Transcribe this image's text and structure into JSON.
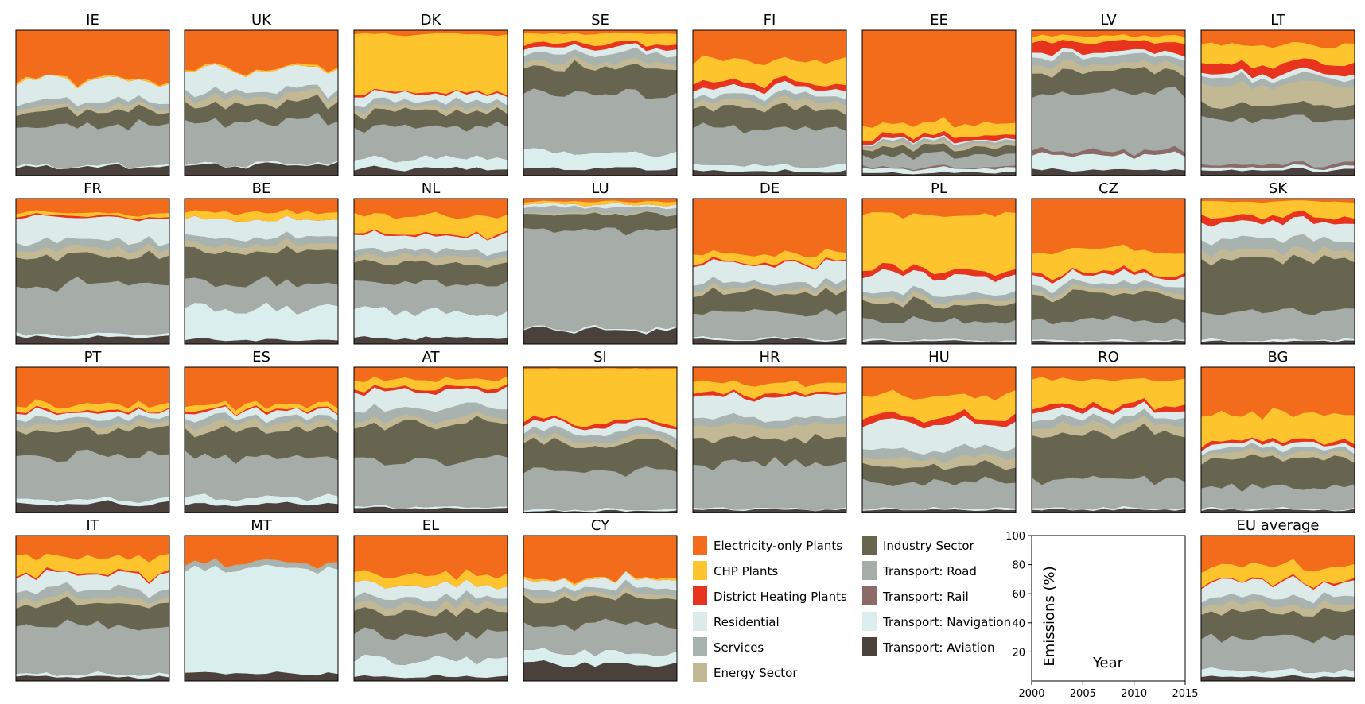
{
  "chart_data": {
    "type": "area",
    "stacked": "normalized",
    "x": [
      2000,
      2001,
      2002,
      2003,
      2004,
      2005,
      2006,
      2007,
      2008,
      2009,
      2010,
      2011,
      2012,
      2013,
      2014,
      2015
    ],
    "ylabel": "Emissions (%)",
    "xlabel": "Year",
    "xlim": [
      2000,
      2015
    ],
    "ylim": [
      0,
      100
    ],
    "xticks": [
      2000,
      2005,
      2010,
      2015
    ],
    "yticks": [
      20,
      40,
      60,
      80,
      100
    ],
    "legend": [
      {
        "name": "Electricity-only Plants",
        "color": "#f26c1b"
      },
      {
        "name": "CHP Plants",
        "color": "#fec42e"
      },
      {
        "name": "District Heating Plants",
        "color": "#e8341e"
      },
      {
        "name": "Residential",
        "color": "#ddeaea"
      },
      {
        "name": "Services",
        "color": "#a8b3b0"
      },
      {
        "name": "Energy Sector",
        "color": "#c3b894"
      },
      {
        "name": "Industry Sector",
        "color": "#676450"
      },
      {
        "name": "Transport: Road",
        "color": "#a6aca8"
      },
      {
        "name": "Transport: Rail",
        "color": "#8b6b68"
      },
      {
        "name": "Transport: Navigation",
        "color": "#daeeed"
      },
      {
        "name": "Transport: Aviation",
        "color": "#4a403c"
      }
    ],
    "stack_order": [
      "Transport: Aviation",
      "Transport: Navigation",
      "Transport: Rail",
      "Transport: Road",
      "Industry Sector",
      "Energy Sector",
      "Services",
      "Residential",
      "District Heating Plants",
      "CHP Plants",
      "Electricity-only Plants"
    ],
    "panels": [
      {
        "title": "IE",
        "shares": [
          6,
          1,
          0,
          28,
          10,
          3,
          4,
          14,
          0,
          1,
          33
        ]
      },
      {
        "title": "UK",
        "shares": [
          7,
          1,
          0,
          29,
          12,
          5,
          4,
          15,
          0,
          1,
          26
        ]
      },
      {
        "title": "DK",
        "shares": [
          5,
          7,
          0,
          22,
          10,
          3,
          4,
          5,
          1,
          40,
          3
        ]
      },
      {
        "title": "SE",
        "shares": [
          5,
          11,
          0,
          40,
          18,
          4,
          6,
          4,
          3,
          7,
          2
        ]
      },
      {
        "title": "FI",
        "shares": [
          3,
          4,
          0,
          26,
          14,
          5,
          4,
          5,
          4,
          15,
          20
        ]
      },
      {
        "title": "EE",
        "shares": [
          2,
          3,
          1,
          8,
          5,
          2,
          2,
          1,
          3,
          8,
          65
        ]
      },
      {
        "title": "LV",
        "shares": [
          4,
          10,
          3,
          40,
          15,
          5,
          5,
          3,
          7,
          4,
          4
        ]
      },
      {
        "title": "LT",
        "shares": [
          4,
          2,
          2,
          30,
          10,
          14,
          5,
          3,
          7,
          13,
          10
        ]
      },
      {
        "title": "FR",
        "shares": [
          5,
          2,
          0,
          34,
          19,
          5,
          5,
          17,
          1,
          2,
          10
        ]
      },
      {
        "title": "BE",
        "shares": [
          3,
          22,
          0,
          17,
          22,
          5,
          5,
          12,
          0,
          5,
          9
        ]
      },
      {
        "title": "NL",
        "shares": [
          4,
          18,
          0,
          19,
          14,
          5,
          4,
          10,
          1,
          13,
          12
        ]
      },
      {
        "title": "LU",
        "shares": [
          10,
          1,
          0,
          67,
          11,
          1,
          4,
          2,
          0,
          2,
          2
        ]
      },
      {
        "title": "DE",
        "shares": [
          3,
          1,
          0,
          18,
          14,
          3,
          4,
          13,
          1,
          6,
          37
        ]
      },
      {
        "title": "PL",
        "shares": [
          2,
          1,
          0,
          14,
          12,
          3,
          4,
          12,
          4,
          37,
          11
        ]
      },
      {
        "title": "CZ",
        "shares": [
          2,
          1,
          0,
          13,
          18,
          3,
          4,
          6,
          2,
          15,
          36
        ]
      },
      {
        "title": "SK",
        "shares": [
          2,
          1,
          0,
          19,
          36,
          7,
          8,
          11,
          4,
          10,
          2
        ]
      },
      {
        "title": "PT",
        "shares": [
          6,
          3,
          0,
          30,
          18,
          4,
          4,
          4,
          1,
          4,
          26
        ]
      },
      {
        "title": "ES",
        "shares": [
          6,
          5,
          0,
          28,
          18,
          5,
          4,
          4,
          1,
          3,
          26
        ]
      },
      {
        "title": "AT",
        "shares": [
          3,
          1,
          0,
          32,
          25,
          4,
          7,
          12,
          2,
          6,
          8
        ]
      },
      {
        "title": "SI",
        "shares": [
          1,
          1,
          0,
          27,
          19,
          3,
          5,
          5,
          2,
          36,
          1
        ]
      },
      {
        "title": "HR",
        "shares": [
          2,
          1,
          0,
          31,
          17,
          9,
          5,
          15,
          2,
          7,
          11
        ]
      },
      {
        "title": "HU",
        "shares": [
          2,
          1,
          0,
          18,
          11,
          6,
          6,
          18,
          4,
          14,
          20
        ]
      },
      {
        "title": "RO",
        "shares": [
          2,
          1,
          0,
          20,
          32,
          6,
          5,
          5,
          3,
          18,
          8
        ]
      },
      {
        "title": "BG",
        "shares": [
          2,
          1,
          0,
          15,
          20,
          4,
          3,
          3,
          2,
          18,
          32
        ]
      },
      {
        "title": "IT",
        "shares": [
          3,
          2,
          0,
          33,
          15,
          4,
          6,
          10,
          1,
          11,
          15
        ]
      },
      {
        "title": "MT",
        "shares": [
          5,
          72,
          0,
          0,
          0,
          0,
          4,
          0,
          0,
          0,
          19
        ]
      },
      {
        "title": "EL",
        "shares": [
          3,
          12,
          0,
          17,
          15,
          5,
          5,
          9,
          0,
          7,
          27
        ]
      },
      {
        "title": "CY",
        "shares": [
          11,
          8,
          0,
          19,
          19,
          3,
          4,
          6,
          0,
          1,
          29
        ]
      },
      {
        "title": "EU average",
        "shares": [
          3,
          4,
          0,
          23,
          18,
          5,
          5,
          10,
          1,
          10,
          21
        ]
      }
    ]
  }
}
